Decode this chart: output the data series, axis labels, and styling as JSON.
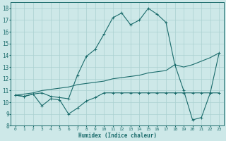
{
  "xlabel": "Humidex (Indice chaleur)",
  "bg_color": "#cde8e8",
  "grid_color": "#aad0d0",
  "line_color": "#1a6b6b",
  "xlim": [
    -0.5,
    23.5
  ],
  "ylim": [
    8,
    18.5
  ],
  "xticks": [
    0,
    1,
    2,
    3,
    4,
    5,
    6,
    7,
    8,
    9,
    10,
    11,
    12,
    13,
    14,
    15,
    16,
    17,
    18,
    19,
    20,
    21,
    22,
    23
  ],
  "yticks": [
    8,
    9,
    10,
    11,
    12,
    13,
    14,
    15,
    16,
    17,
    18
  ],
  "line1_x": [
    0,
    1,
    2,
    3,
    4,
    5,
    6,
    7,
    8,
    9,
    10,
    11,
    12,
    13,
    14,
    15,
    16,
    17,
    18,
    19,
    20,
    21,
    22,
    23
  ],
  "line1_y": [
    10.6,
    10.5,
    10.7,
    10.8,
    10.5,
    10.4,
    10.3,
    12.3,
    13.9,
    14.5,
    15.8,
    17.2,
    17.6,
    16.6,
    17.0,
    18.0,
    17.5,
    16.8,
    13.2,
    11.0,
    8.5,
    8.7,
    10.8,
    14.2
  ],
  "line2_x": [
    0,
    1,
    2,
    3,
    4,
    5,
    6,
    7,
    8,
    9,
    10,
    11,
    12,
    13,
    14,
    15,
    16,
    17,
    18,
    19,
    20,
    21,
    22,
    23
  ],
  "line2_y": [
    10.6,
    10.5,
    10.7,
    9.7,
    10.3,
    10.2,
    9.0,
    9.5,
    10.1,
    10.4,
    10.8,
    10.8,
    10.8,
    10.8,
    10.8,
    10.8,
    10.8,
    10.8,
    10.8,
    10.8,
    10.8,
    10.8,
    10.8,
    10.8
  ],
  "line3_x": [
    0,
    1,
    2,
    3,
    4,
    5,
    6,
    7,
    8,
    9,
    10,
    11,
    12,
    13,
    14,
    15,
    16,
    17,
    18,
    19,
    20,
    21,
    22,
    23
  ],
  "line3_y": [
    10.6,
    10.7,
    10.8,
    11.0,
    11.1,
    11.2,
    11.3,
    11.5,
    11.6,
    11.7,
    11.8,
    12.0,
    12.1,
    12.2,
    12.3,
    12.5,
    12.6,
    12.7,
    13.2,
    13.0,
    13.2,
    13.5,
    13.8,
    14.2
  ]
}
